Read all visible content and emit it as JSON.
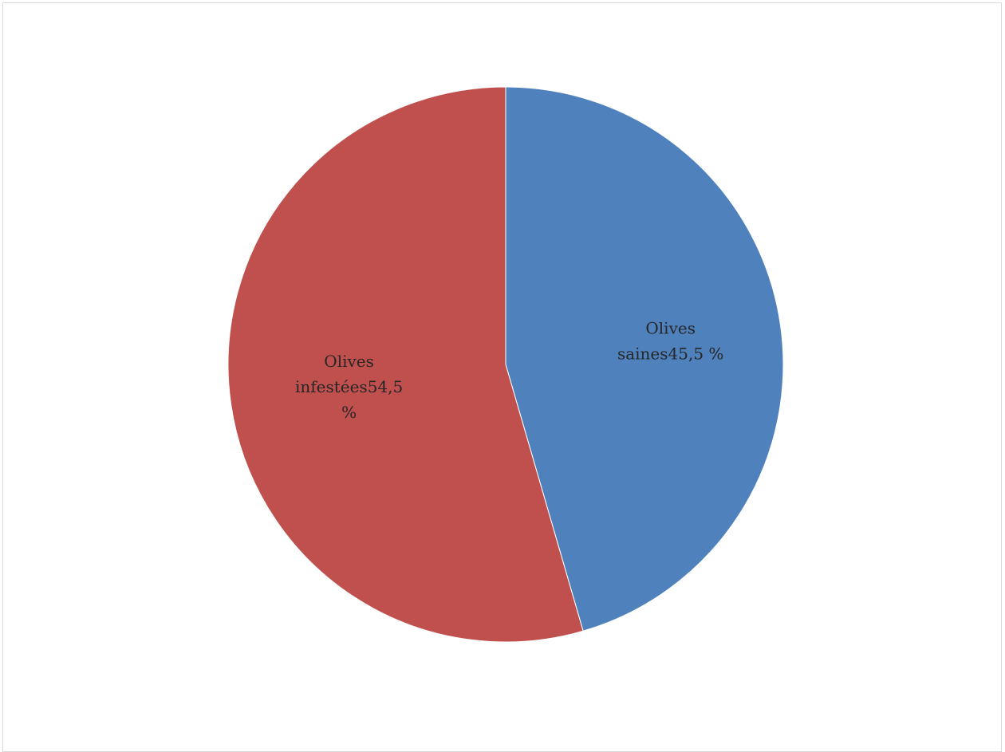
{
  "chart_data": {
    "type": "pie",
    "title": "",
    "slices": [
      {
        "name": "Olives saines",
        "value": 45.5,
        "color": "#4f81bd",
        "label_lines": [
          "Olives",
          "saines45,5 %"
        ]
      },
      {
        "name": "Olives infestées",
        "value": 54.5,
        "color": "#c0504d",
        "label_lines": [
          "Olives",
          "infestées54,5",
          "%"
        ]
      }
    ],
    "legend": "none"
  }
}
